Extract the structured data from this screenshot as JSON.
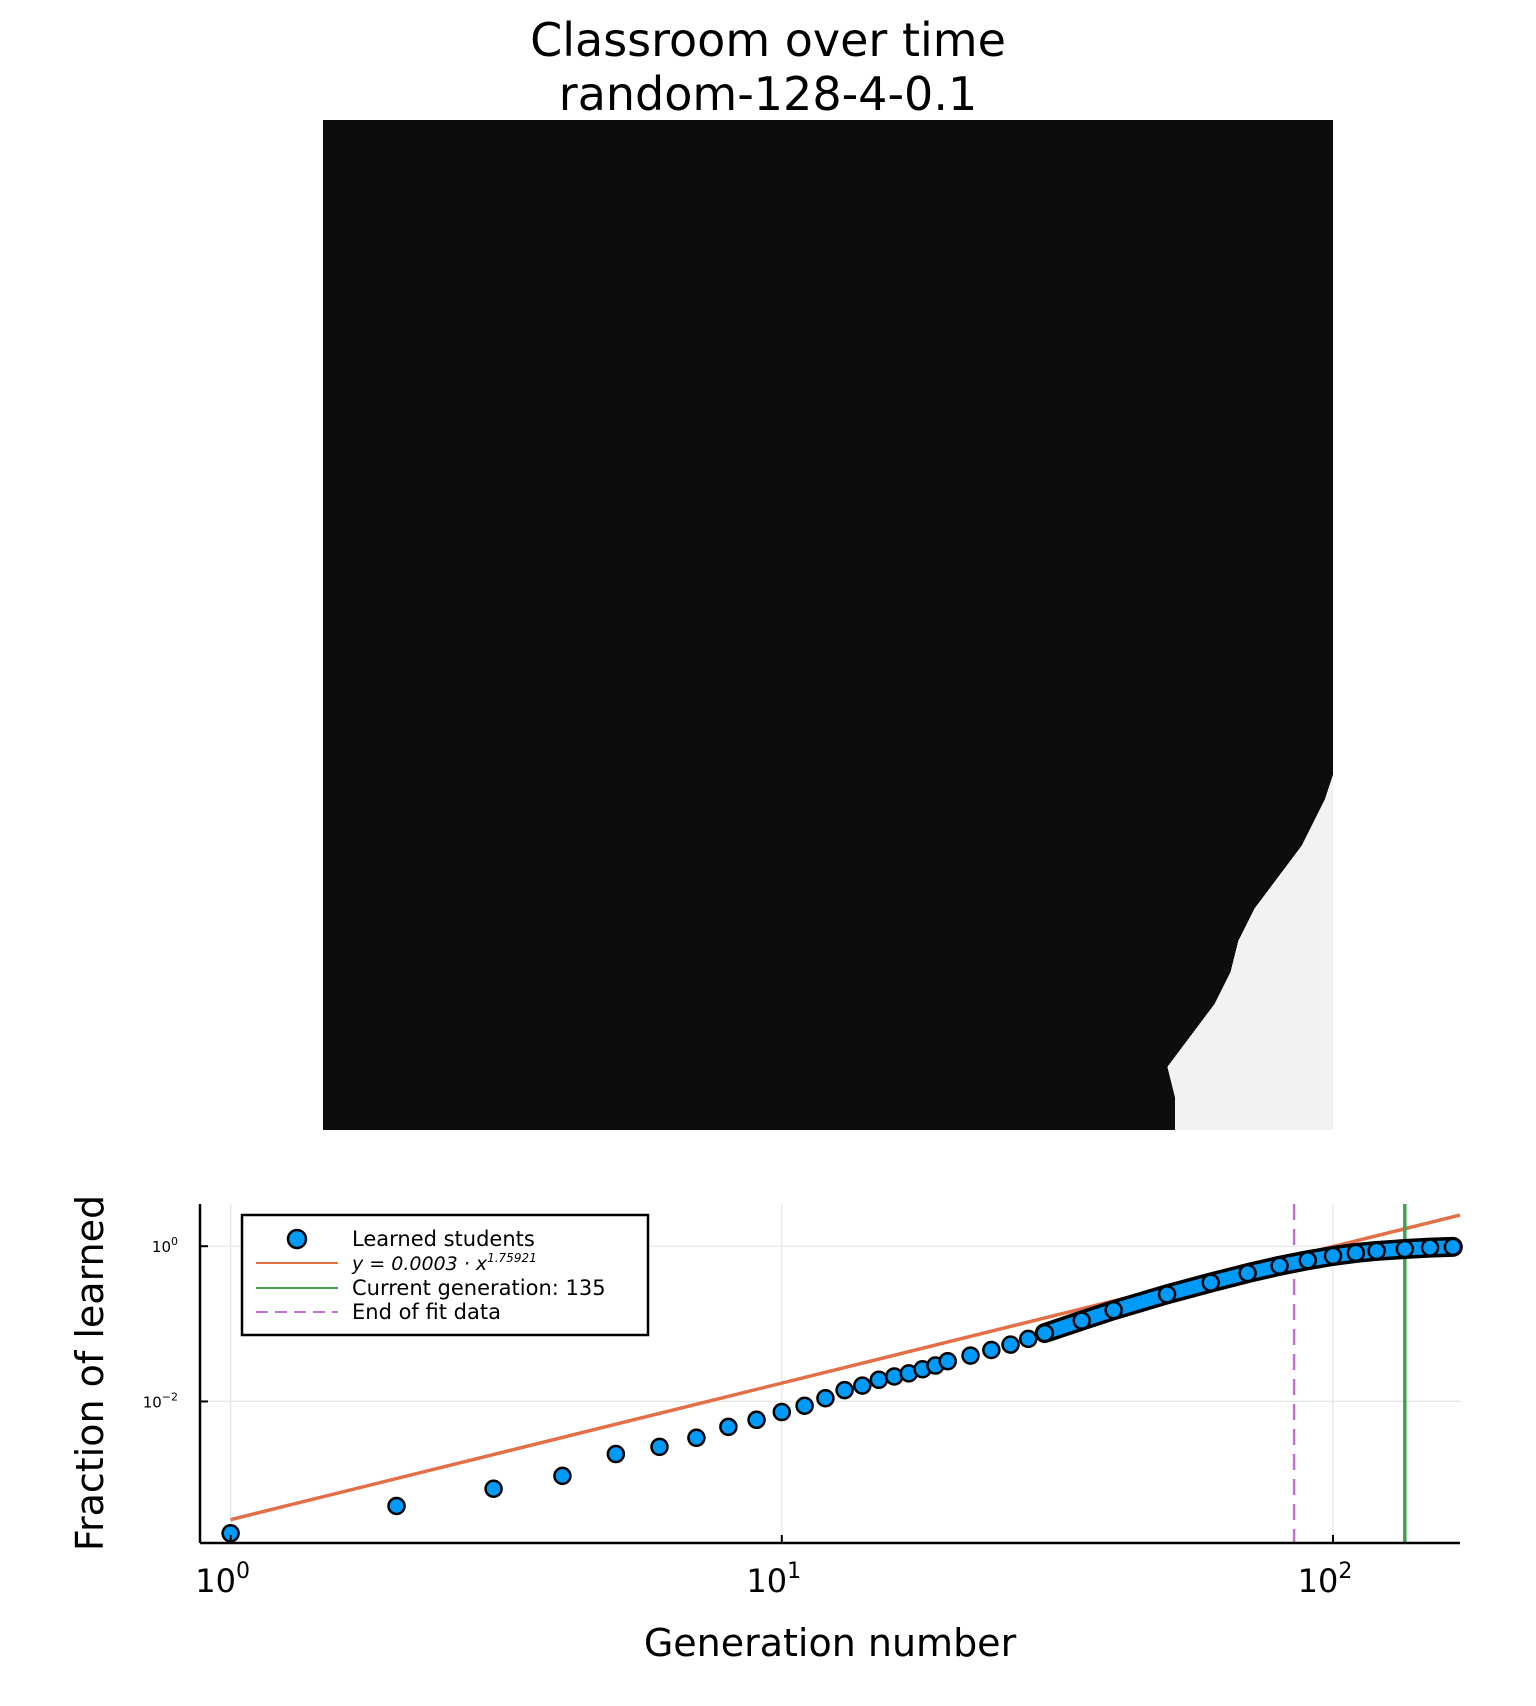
{
  "chart_data": [
    {
      "type": "heatmap",
      "title": "Classroom over time",
      "subtitle": "random-128-4-0.1",
      "grid_size": 128,
      "colors": {
        "not_learned": "#0d0d0d",
        "learned": "#f2f2f2"
      },
      "learned_region_boundary": [
        [
          108,
          0.0
        ],
        [
          108,
          4.0
        ],
        [
          107,
          8.0
        ],
        [
          110,
          12.0
        ],
        [
          113,
          16.0
        ],
        [
          115,
          20.0
        ],
        [
          116,
          24.0
        ],
        [
          118,
          28.0
        ],
        [
          121,
          32.0
        ],
        [
          124,
          36.0
        ],
        [
          127,
          42.0
        ],
        [
          128,
          45.0
        ]
      ]
    },
    {
      "type": "scatter",
      "xlabel": "Generation number",
      "ylabel": "Fraction of learned",
      "x_scale": "log10",
      "y_scale": "log10",
      "xlim": [
        0.88,
        170
      ],
      "ylim": [
        0.00015,
        3.5
      ],
      "x_ticks": [
        1,
        10,
        100
      ],
      "y_ticks": [
        1,
        0.01
      ],
      "grid": true,
      "legend_position": "top-left",
      "series": [
        {
          "name": "Learned students",
          "kind": "markers",
          "color": "#009af9",
          "x": [
            1,
            2,
            3,
            4,
            5,
            6,
            7,
            8,
            9,
            10,
            11,
            12,
            13,
            14,
            15,
            16,
            17,
            18,
            19,
            20,
            22,
            24,
            26,
            28,
            30,
            35,
            40,
            50,
            60,
            70,
            80,
            90,
            100,
            110,
            120,
            135,
            150,
            165
          ],
          "y": [
            0.0002,
            0.00045,
            0.00075,
            0.0011,
            0.0021,
            0.0026,
            0.0034,
            0.0047,
            0.0058,
            0.0073,
            0.0088,
            0.011,
            0.014,
            0.016,
            0.019,
            0.021,
            0.023,
            0.026,
            0.029,
            0.033,
            0.039,
            0.046,
            0.054,
            0.064,
            0.076,
            0.11,
            0.15,
            0.24,
            0.34,
            0.45,
            0.56,
            0.66,
            0.75,
            0.82,
            0.87,
            0.92,
            0.96,
            0.98
          ]
        },
        {
          "name": "y = 0.0003 · x^1.75921",
          "kind": "line",
          "color": "#e26f46",
          "formula": {
            "coefficient": 0.0003,
            "exponent": 1.75921
          },
          "x_range": [
            1,
            170
          ]
        },
        {
          "name": "Current generation: 135",
          "kind": "vline",
          "color": "#3da44d",
          "x": 135
        },
        {
          "name": "End of fit data",
          "kind": "vline_dashed",
          "color": "#c271d2",
          "x": 85
        }
      ],
      "legend": {
        "learned": "Learned students",
        "fit_prefix": "y = 0.0003 · x",
        "fit_exponent": "1.75921",
        "current": "Current generation: 135",
        "endfit": "End of fit data"
      }
    }
  ]
}
